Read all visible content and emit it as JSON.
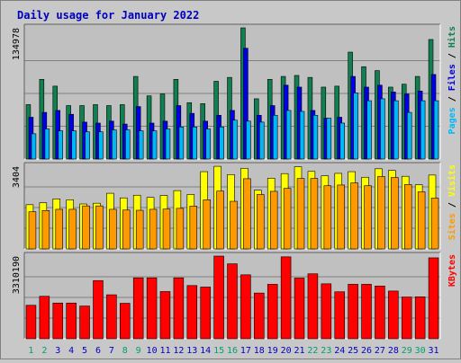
{
  "chart_data": [
    {
      "type": "bar",
      "title": "Daily usage for January 2022",
      "categories": [
        "1",
        "2",
        "3",
        "4",
        "5",
        "6",
        "7",
        "8",
        "9",
        "10",
        "11",
        "12",
        "13",
        "14",
        "15",
        "16",
        "17",
        "18",
        "19",
        "20",
        "21",
        "22",
        "23",
        "24",
        "25",
        "26",
        "27",
        "28",
        "29",
        "30",
        "31"
      ],
      "weekend_days": [
        "1",
        "2",
        "8",
        "9",
        "15",
        "16",
        "22",
        "23",
        "29",
        "30"
      ],
      "ymax_label": "134978",
      "ylim": [
        0,
        134978
      ],
      "series": [
        {
          "name": "Hits",
          "color": "#108050",
          "values": [
            56000,
            82000,
            75000,
            55000,
            55000,
            56000,
            55000,
            56000,
            85000,
            65000,
            67000,
            82000,
            58000,
            57000,
            80000,
            84000,
            134978,
            62000,
            82000,
            85000,
            86000,
            84000,
            74000,
            75000,
            110000,
            95000,
            91000,
            74000,
            77000,
            85000,
            123000
          ]
        },
        {
          "name": "Files",
          "color": "#0000e8",
          "values": [
            43000,
            48000,
            50000,
            46000,
            38000,
            37000,
            39000,
            36000,
            54000,
            37000,
            39000,
            55000,
            47000,
            39000,
            45000,
            50000,
            114000,
            45000,
            55000,
            76000,
            74000,
            50000,
            42000,
            43000,
            85000,
            74000,
            76000,
            69000,
            67000,
            70000,
            87000
          ]
        },
        {
          "name": "Pages",
          "color": "#00b8f8",
          "values": [
            26000,
            31000,
            29000,
            29000,
            28000,
            28000,
            30000,
            30000,
            29000,
            29000,
            31000,
            33000,
            33000,
            31000,
            33000,
            40000,
            39000,
            38000,
            45000,
            50000,
            49000,
            45000,
            42000,
            37000,
            68000,
            60000,
            62000,
            60000,
            48000,
            60000,
            60000
          ]
        }
      ]
    },
    {
      "type": "bar",
      "ymax_label": "3404",
      "ylim": [
        0,
        3404
      ],
      "series": [
        {
          "name": "Visits",
          "color": "#ffff00",
          "values": [
            1820,
            1900,
            2060,
            2020,
            1850,
            1880,
            2290,
            2100,
            2210,
            2120,
            2200,
            2400,
            2240,
            3180,
            3400,
            3060,
            3320,
            2420,
            2910,
            3100,
            3380,
            3190,
            3010,
            3110,
            3180,
            2950,
            3300,
            3230,
            2990,
            2640,
            3040
          ]
        },
        {
          "name": "Sites",
          "color": "#ff9900",
          "values": [
            1530,
            1580,
            1630,
            1630,
            1770,
            1770,
            1630,
            1600,
            1590,
            1630,
            1640,
            1670,
            1760,
            2020,
            2380,
            1960,
            2890,
            2240,
            2370,
            2490,
            2900,
            2900,
            2600,
            2630,
            2720,
            2600,
            2980,
            2940,
            2650,
            2350,
            2090
          ]
        }
      ]
    },
    {
      "type": "bar",
      "ymax_label": "3310190",
      "ylim": [
        0,
        3310190
      ],
      "series": [
        {
          "name": "KBytes",
          "color": "#ff0000",
          "values": [
            1340000,
            1700000,
            1430000,
            1430000,
            1310000,
            2330000,
            1760000,
            1420000,
            2440000,
            2440000,
            1890000,
            2440000,
            2130000,
            2070000,
            3310190,
            3000000,
            2560000,
            1830000,
            2180000,
            3280000,
            2430000,
            2600000,
            2200000,
            1880000,
            2180000,
            2180000,
            2110000,
            1910000,
            1670000,
            1680000,
            3240000
          ]
        }
      ]
    }
  ],
  "legend": {
    "top": [
      {
        "text": "Pages",
        "color": "#00b8f8"
      },
      {
        "text": " / ",
        "color": "#000000"
      },
      {
        "text": "Files",
        "color": "#0000e8"
      },
      {
        "text": " / ",
        "color": "#000000"
      },
      {
        "text": "Hits",
        "color": "#108050"
      }
    ],
    "middle": [
      {
        "text": "Sites",
        "color": "#ff9900"
      },
      {
        "text": " / ",
        "color": "#000000"
      },
      {
        "text": "Visits",
        "color": "#ffff00"
      }
    ],
    "bottom": [
      {
        "text": "KBytes",
        "color": "#ff0000"
      }
    ]
  },
  "colors": {
    "title": "#0000c0",
    "weekday_label": "#0000c0",
    "weekend_label": "#00a070"
  }
}
